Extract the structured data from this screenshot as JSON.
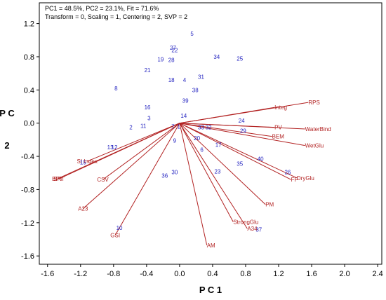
{
  "chart_data": {
    "type": "scatter",
    "subtype": "pca-biplot",
    "header": {
      "line1": "PC1 = 48.5%, PC2 = 23.1%, Fit = 71.6%",
      "line2": "Transform = 0, Scaling = 1, Centering = 2, SVP = 2"
    },
    "xlabel": "P C 1",
    "ylabel": "P C 2",
    "xlim": [
      -1.7,
      2.45
    ],
    "ylim": [
      -1.7,
      1.45
    ],
    "xticks": [
      -1.6,
      -1.2,
      -0.8,
      -0.4,
      0.0,
      0.4,
      0.8,
      1.2,
      1.6,
      2.0,
      2.4
    ],
    "xtick_labels": [
      "-1.6",
      "-1.2",
      "-0.8",
      "-0.4",
      "0.0",
      "0.4",
      "0.8",
      "1.2",
      "1.6",
      "2.0",
      "2.4"
    ],
    "yticks": [
      1.2,
      0.8,
      0.4,
      0.0,
      -0.4,
      -0.8,
      -1.2,
      -1.6
    ],
    "ytick_labels": [
      "1.2",
      "0.8",
      "0.4",
      "0.0",
      "-0.4",
      "-0.8",
      "-1.2",
      "-1.6"
    ],
    "grid": false,
    "colors": {
      "observations": "#1f1fbf",
      "variables": "#b22222",
      "axis": "#000000"
    },
    "observations": [
      {
        "label": "1",
        "x": -0.01,
        "y": -0.04
      },
      {
        "label": "2",
        "x": -0.59,
        "y": -0.05
      },
      {
        "label": "3",
        "x": -0.37,
        "y": 0.06
      },
      {
        "label": "4",
        "x": 0.06,
        "y": 0.52
      },
      {
        "label": "5",
        "x": 0.15,
        "y": 1.08
      },
      {
        "label": "6",
        "x": 0.27,
        "y": -0.32
      },
      {
        "label": "7",
        "x": -0.08,
        "y": -0.04
      },
      {
        "label": "8",
        "x": -0.77,
        "y": 0.42
      },
      {
        "label": "9",
        "x": -0.06,
        "y": -0.21
      },
      {
        "label": "10",
        "x": -0.73,
        "y": -1.26
      },
      {
        "label": "11",
        "x": -0.44,
        "y": -0.03
      },
      {
        "label": "12",
        "x": -0.79,
        "y": -0.29
      },
      {
        "label": "13",
        "x": -0.84,
        "y": -0.29
      },
      {
        "label": "14",
        "x": 0.05,
        "y": 0.09
      },
      {
        "label": "15",
        "x": -1.17,
        "y": -0.47
      },
      {
        "label": "16",
        "x": -0.39,
        "y": 0.19
      },
      {
        "label": "17",
        "x": 0.47,
        "y": -0.26
      },
      {
        "label": "18",
        "x": -0.1,
        "y": 0.52
      },
      {
        "label": "19",
        "x": -0.23,
        "y": 0.77
      },
      {
        "label": "20",
        "x": 0.21,
        "y": -0.18
      },
      {
        "label": "21",
        "x": -0.39,
        "y": 0.64
      },
      {
        "label": "22",
        "x": -0.06,
        "y": 0.88
      },
      {
        "label": "23",
        "x": 0.46,
        "y": -0.58
      },
      {
        "label": "24",
        "x": 0.75,
        "y": 0.03
      },
      {
        "label": "25",
        "x": 0.73,
        "y": 0.78
      },
      {
        "label": "26",
        "x": 1.31,
        "y": -0.59
      },
      {
        "label": "27",
        "x": -0.08,
        "y": 0.91
      },
      {
        "label": "28",
        "x": -0.1,
        "y": 0.76
      },
      {
        "label": "29",
        "x": 0.77,
        "y": -0.09
      },
      {
        "label": "30",
        "x": -0.06,
        "y": -0.59
      },
      {
        "label": "31",
        "x": 0.26,
        "y": 0.56
      },
      {
        "label": "32",
        "x": 0.35,
        "y": -0.05
      },
      {
        "label": "33",
        "x": 0.26,
        "y": -0.05
      },
      {
        "label": "34",
        "x": 0.45,
        "y": 0.8
      },
      {
        "label": "35",
        "x": 0.73,
        "y": -0.49
      },
      {
        "label": "36",
        "x": -0.18,
        "y": -0.63
      },
      {
        "label": "37",
        "x": 0.96,
        "y": -1.28
      },
      {
        "label": "38",
        "x": 0.19,
        "y": 0.4
      },
      {
        "label": "39",
        "x": 0.07,
        "y": 0.27
      },
      {
        "label": "40",
        "x": 0.98,
        "y": -0.43
      }
    ],
    "variables": [
      {
        "label": "RPS",
        "x": 1.56,
        "y": 0.25
      },
      {
        "label": "Integ",
        "x": 1.15,
        "y": 0.19
      },
      {
        "label": "PV",
        "x": 1.15,
        "y": -0.05
      },
      {
        "label": "WaterBind",
        "x": 1.52,
        "y": -0.07
      },
      {
        "label": "BEM",
        "x": 1.12,
        "y": -0.16
      },
      {
        "label": "WetGlu",
        "x": 1.52,
        "y": -0.27
      },
      {
        "label": "DryGlu",
        "x": 1.42,
        "y": -0.66
      },
      {
        "label": "FP",
        "x": 1.35,
        "y": -0.68
      },
      {
        "label": "PM",
        "x": 1.04,
        "y": -0.98
      },
      {
        "label": "StrongGlu",
        "x": 0.65,
        "y": -1.19
      },
      {
        "label": "A34",
        "x": 0.82,
        "y": -1.27
      },
      {
        "label": "AM",
        "x": 0.33,
        "y": -1.47
      },
      {
        "label": "GSI",
        "x": -0.78,
        "y": -1.35
      },
      {
        "label": "A23",
        "x": -1.17,
        "y": -1.03
      },
      {
        "label": "CSV",
        "x": -0.93,
        "y": -0.68
      },
      {
        "label": "BPT",
        "x": -1.48,
        "y": -0.67
      },
      {
        "label": "SRT",
        "x": -1.46,
        "y": -0.67
      },
      {
        "label": "SI Index",
        "x": -1.12,
        "y": -0.46
      }
    ]
  }
}
